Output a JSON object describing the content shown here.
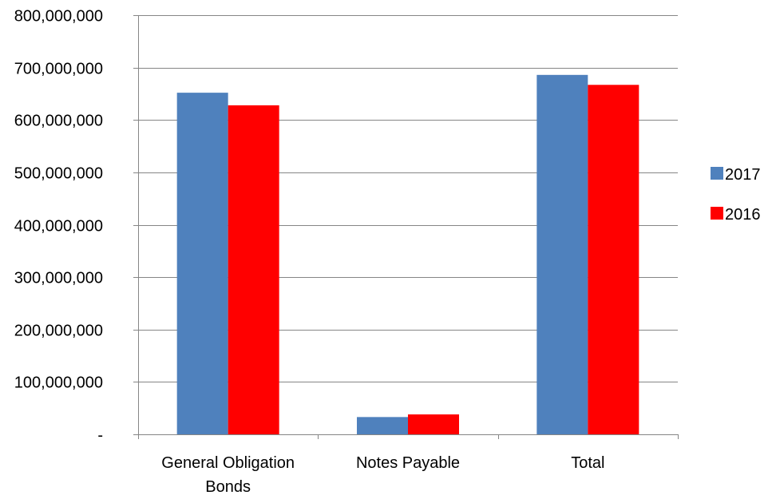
{
  "chart_data": {
    "type": "bar",
    "categories": [
      [
        "General Obligation",
        "Bonds"
      ],
      [
        "Notes Payable"
      ],
      [
        "Total"
      ]
    ],
    "series": [
      {
        "name": "2017",
        "color": "#4f81bd",
        "values": [
          652000000,
          33000000,
          686000000
        ]
      },
      {
        "name": "2016",
        "color": "#ff0000",
        "values": [
          628000000,
          38000000,
          667000000
        ]
      }
    ],
    "y_ticks": [
      0,
      100000000,
      200000000,
      300000000,
      400000000,
      500000000,
      600000000,
      700000000,
      800000000
    ],
    "y_tick_labels": [
      "-",
      "100,000,000",
      "200,000,000",
      "300,000,000",
      "400,000,000",
      "500,000,000",
      "600,000,000",
      "700,000,000",
      "800,000,000"
    ],
    "ylim": [
      0,
      800000000
    ],
    "title": "",
    "xlabel": "",
    "ylabel": "",
    "grid": true,
    "legend_position": "right",
    "gridline_color": "#868686",
    "axis_color": "#868686"
  }
}
